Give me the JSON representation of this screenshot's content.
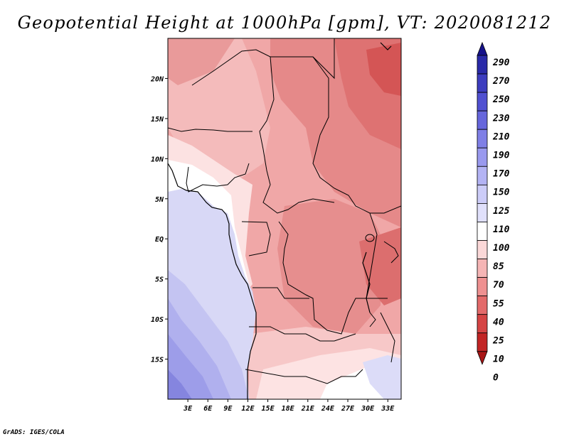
{
  "title": "Geopotential Height at 1000hPa [gpm], VT: 2020081212",
  "credit": "GrADS: IGES/COLA",
  "map": {
    "lon_range": [
      0,
      35
    ],
    "lat_range": [
      -20,
      25
    ],
    "lon_ticks": [
      "3E",
      "6E",
      "9E",
      "12E",
      "15E",
      "18E",
      "21E",
      "24E",
      "27E",
      "30E",
      "33E"
    ],
    "lon_values": [
      3,
      6,
      9,
      12,
      15,
      18,
      21,
      24,
      27,
      30,
      33
    ],
    "lat_ticks": [
      "20N",
      "15N",
      "10N",
      "5N",
      "EQ",
      "5S",
      "10S",
      "15S"
    ],
    "lat_values": [
      20,
      15,
      10,
      5,
      0,
      -5,
      -10,
      -15
    ]
  },
  "colorbar": {
    "labels": [
      "290",
      "270",
      "250",
      "230",
      "210",
      "190",
      "170",
      "150",
      "125",
      "110",
      "100",
      "85",
      "70",
      "55",
      "40",
      "25",
      "10",
      "0"
    ],
    "colors": [
      "#16128a",
      "#2a2aa8",
      "#3d3dbf",
      "#5050d1",
      "#6666dc",
      "#7f7fe6",
      "#9999ee",
      "#b3b3f4",
      "#ccccf8",
      "#e0e0fb",
      "#ffffff",
      "#fbd8d8",
      "#f5b5b5",
      "#ee9090",
      "#e36a6a",
      "#d54444",
      "#c22525",
      "#a81515"
    ]
  }
}
